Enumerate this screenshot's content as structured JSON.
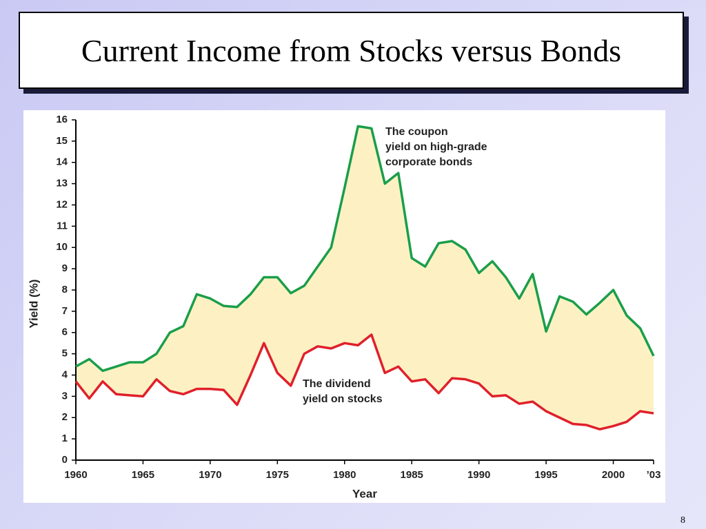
{
  "chart_data": {
    "type": "line",
    "title": "Current Income from Stocks versus Bonds",
    "page_number": "8",
    "x_label": "Year",
    "y_label": "Yield (%)",
    "x": [
      1960,
      1961,
      1962,
      1963,
      1964,
      1965,
      1966,
      1967,
      1968,
      1969,
      1970,
      1971,
      1972,
      1973,
      1974,
      1975,
      1976,
      1977,
      1978,
      1979,
      1980,
      1981,
      1982,
      1983,
      1984,
      1985,
      1986,
      1987,
      1988,
      1989,
      1990,
      1991,
      1992,
      1993,
      1994,
      1995,
      1996,
      1997,
      1998,
      1999,
      2000,
      2001,
      2002,
      2003
    ],
    "series": [
      {
        "color": "#1a9e4a",
        "values": [
          4.4,
          4.75,
          4.2,
          4.4,
          4.6,
          4.6,
          5.0,
          6.0,
          6.3,
          7.8,
          7.6,
          7.25,
          7.2,
          7.8,
          8.6,
          8.6,
          7.85,
          8.2,
          9.1,
          10.0,
          12.8,
          15.7,
          15.6,
          13.0,
          13.5,
          9.5,
          9.1,
          10.2,
          10.3,
          9.9,
          8.8,
          9.35,
          8.6,
          7.6,
          8.75,
          6.05,
          7.7,
          7.45,
          6.85,
          7.4,
          8.0,
          6.8,
          6.2,
          4.9
        ]
      },
      {
        "color": "#e0202a",
        "values": [
          3.7,
          2.9,
          3.7,
          3.1,
          3.05,
          3.0,
          3.8,
          3.25,
          3.1,
          3.35,
          3.35,
          3.3,
          2.6,
          4.0,
          5.5,
          4.1,
          3.5,
          5.0,
          5.35,
          5.25,
          5.5,
          5.4,
          5.9,
          4.1,
          4.4,
          3.7,
          3.8,
          3.15,
          3.85,
          3.8,
          3.6,
          3.0,
          3.05,
          2.65,
          2.75,
          2.3,
          2.0,
          1.7,
          1.65,
          1.45,
          1.6,
          1.8,
          2.3,
          2.2
        ]
      }
    ],
    "fill_between_color": "#fdf1c4",
    "annotations": [
      {
        "lines": [
          "The coupon",
          "yield on high-grade",
          "corporate bonds"
        ]
      },
      {
        "lines": [
          "The dividend",
          "yield on stocks"
        ]
      }
    ],
    "xlim": [
      1960,
      2003
    ],
    "xticks": [
      1960,
      1965,
      1970,
      1975,
      1980,
      1985,
      1990,
      1995,
      2000,
      {
        "value": 2003,
        "label": "’03"
      }
    ],
    "ylim": [
      0,
      16
    ],
    "yticks": [
      0,
      1,
      2,
      3,
      4,
      5,
      6,
      7,
      8,
      9,
      10,
      11,
      12,
      13,
      14,
      15,
      16
    ],
    "grid": false
  }
}
